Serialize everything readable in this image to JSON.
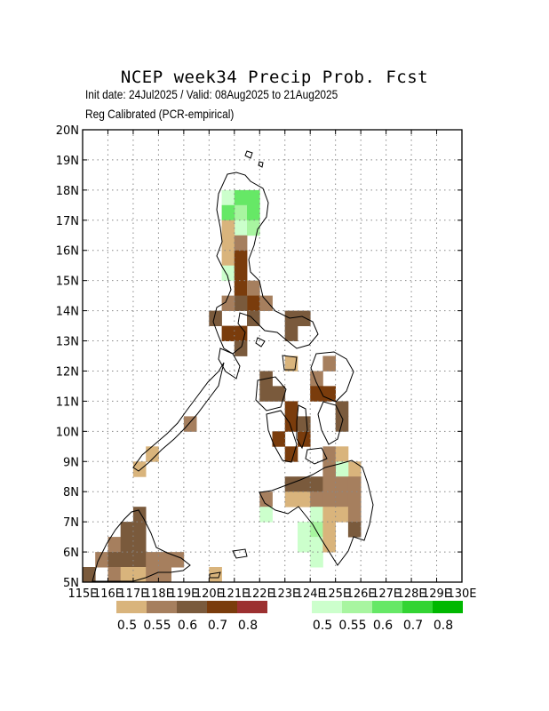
{
  "title": "NCEP week34 Precip Prob. Fcst",
  "subtitle1": "Init date: 24Jul2025 / Valid: 08Aug2025 to 21Aug2025",
  "subtitle2": "Reg Calibrated (PCR-empirical)",
  "axes": {
    "lon_labels": [
      "115E",
      "116E",
      "117E",
      "118E",
      "119E",
      "120E",
      "121E",
      "122E",
      "123E",
      "124E",
      "125E",
      "126E",
      "127E",
      "128E",
      "129E",
      "130E"
    ],
    "lat_labels": [
      "5N",
      "6N",
      "7N",
      "8N",
      "9N",
      "10N",
      "11N",
      "12N",
      "13N",
      "14N",
      "15N",
      "16N",
      "17N",
      "18N",
      "19N",
      "20N"
    ],
    "lon_range": [
      115,
      130
    ],
    "lat_range": [
      5,
      20
    ],
    "grid": "dotted"
  },
  "legend": {
    "dry": {
      "colors": [
        "#d9b47c",
        "#a67f5e",
        "#7a5a3c",
        "#7a3c0c",
        "#9c3030"
      ],
      "labels": [
        "0.5",
        "0.55",
        "0.6",
        "0.7",
        "0.8"
      ]
    },
    "wet": {
      "colors": [
        "#ccffcc",
        "#a8f5a0",
        "#66e866",
        "#33d433",
        "#00b800"
      ],
      "labels": [
        "0.5",
        "0.55",
        "0.6",
        "0.7",
        "0.8"
      ]
    }
  },
  "chart_data": {
    "type": "heatmap",
    "cell_size_deg": 0.5,
    "cells": [
      {
        "lon": 120.5,
        "lat": 17.5,
        "cat": "W1"
      },
      {
        "lon": 121.0,
        "lat": 17.5,
        "cat": "W3"
      },
      {
        "lon": 121.5,
        "lat": 17.5,
        "cat": "W3"
      },
      {
        "lon": 121.0,
        "lat": 17.0,
        "cat": "W2"
      },
      {
        "lon": 121.5,
        "lat": 17.0,
        "cat": "W3"
      },
      {
        "lon": 120.5,
        "lat": 17.0,
        "cat": "W3"
      },
      {
        "lon": 121.0,
        "lat": 16.5,
        "cat": "W1"
      },
      {
        "lon": 121.5,
        "lat": 16.5,
        "cat": "W2"
      },
      {
        "lon": 120.5,
        "lat": 16.5,
        "cat": "D1"
      },
      {
        "lon": 120.5,
        "lat": 16.0,
        "cat": "D1"
      },
      {
        "lon": 121.0,
        "lat": 16.0,
        "cat": "D2"
      },
      {
        "lon": 120.5,
        "lat": 15.5,
        "cat": "D1"
      },
      {
        "lon": 120.5,
        "lat": 15.0,
        "cat": "W1"
      },
      {
        "lon": 121.0,
        "lat": 15.5,
        "cat": "D4"
      },
      {
        "lon": 121.0,
        "lat": 15.0,
        "cat": "D4"
      },
      {
        "lon": 121.0,
        "lat": 14.5,
        "cat": "D4"
      },
      {
        "lon": 121.5,
        "lat": 14.5,
        "cat": "D2"
      },
      {
        "lon": 121.5,
        "lat": 14.0,
        "cat": "D4"
      },
      {
        "lon": 121.0,
        "lat": 14.0,
        "cat": "D3"
      },
      {
        "lon": 120.5,
        "lat": 14.0,
        "cat": "D2"
      },
      {
        "lon": 120.0,
        "lat": 13.5,
        "cat": "D3"
      },
      {
        "lon": 120.5,
        "lat": 13.0,
        "cat": "D4"
      },
      {
        "lon": 121.0,
        "lat": 13.0,
        "cat": "D4"
      },
      {
        "lon": 121.0,
        "lat": 12.5,
        "cat": "D3"
      },
      {
        "lon": 121.5,
        "lat": 13.5,
        "cat": "D3"
      },
      {
        "lon": 122.0,
        "lat": 14.0,
        "cat": "D2"
      },
      {
        "lon": 123.0,
        "lat": 13.5,
        "cat": "D3"
      },
      {
        "lon": 123.5,
        "lat": 13.5,
        "cat": "D3"
      },
      {
        "lon": 123.0,
        "lat": 13.0,
        "cat": "D3"
      },
      {
        "lon": 123.0,
        "lat": 12.0,
        "cat": "D1"
      },
      {
        "lon": 122.0,
        "lat": 11.5,
        "cat": "D3"
      },
      {
        "lon": 122.0,
        "lat": 11.0,
        "cat": "D3"
      },
      {
        "lon": 122.5,
        "lat": 11.0,
        "cat": "D3"
      },
      {
        "lon": 124.5,
        "lat": 12.0,
        "cat": "D2"
      },
      {
        "lon": 124.0,
        "lat": 11.5,
        "cat": "D2"
      },
      {
        "lon": 124.5,
        "lat": 11.0,
        "cat": "D4"
      },
      {
        "lon": 124.0,
        "lat": 11.0,
        "cat": "D4"
      },
      {
        "lon": 125.0,
        "lat": 10.5,
        "cat": "D3"
      },
      {
        "lon": 125.0,
        "lat": 10.0,
        "cat": "D3"
      },
      {
        "lon": 123.0,
        "lat": 10.5,
        "cat": "D4"
      },
      {
        "lon": 123.0,
        "lat": 10.0,
        "cat": "D4"
      },
      {
        "lon": 122.5,
        "lat": 9.5,
        "cat": "D4"
      },
      {
        "lon": 123.0,
        "lat": 9.0,
        "cat": "D4"
      },
      {
        "lon": 123.5,
        "lat": 9.5,
        "cat": "D4"
      },
      {
        "lon": 123.5,
        "lat": 10.0,
        "cat": "D3"
      },
      {
        "lon": 119.0,
        "lat": 10.0,
        "cat": "D2"
      },
      {
        "lon": 117.5,
        "lat": 9.0,
        "cat": "D1"
      },
      {
        "lon": 117.0,
        "lat": 8.5,
        "cat": "D1"
      },
      {
        "lon": 124.5,
        "lat": 9.0,
        "cat": "D2"
      },
      {
        "lon": 125.0,
        "lat": 9.0,
        "cat": "D1"
      },
      {
        "lon": 125.5,
        "lat": 8.5,
        "cat": "D1"
      },
      {
        "lon": 125.0,
        "lat": 8.5,
        "cat": "W1"
      },
      {
        "lon": 124.5,
        "lat": 8.5,
        "cat": "D2"
      },
      {
        "lon": 123.0,
        "lat": 8.0,
        "cat": "D3"
      },
      {
        "lon": 123.5,
        "lat": 8.0,
        "cat": "D3"
      },
      {
        "lon": 124.0,
        "lat": 8.0,
        "cat": "D3"
      },
      {
        "lon": 124.5,
        "lat": 8.0,
        "cat": "D2"
      },
      {
        "lon": 125.0,
        "lat": 8.0,
        "cat": "D2"
      },
      {
        "lon": 125.5,
        "lat": 8.0,
        "cat": "D2"
      },
      {
        "lon": 122.0,
        "lat": 7.5,
        "cat": "D2"
      },
      {
        "lon": 122.0,
        "lat": 7.0,
        "cat": "W1"
      },
      {
        "lon": 123.0,
        "lat": 7.5,
        "cat": "D1"
      },
      {
        "lon": 123.5,
        "lat": 7.5,
        "cat": "D1"
      },
      {
        "lon": 124.0,
        "lat": 7.5,
        "cat": "D2"
      },
      {
        "lon": 124.5,
        "lat": 7.5,
        "cat": "D2"
      },
      {
        "lon": 125.0,
        "lat": 7.5,
        "cat": "D2"
      },
      {
        "lon": 125.5,
        "lat": 7.5,
        "cat": "D2"
      },
      {
        "lon": 124.0,
        "lat": 7.0,
        "cat": "W1"
      },
      {
        "lon": 124.5,
        "lat": 7.0,
        "cat": "D1"
      },
      {
        "lon": 125.0,
        "lat": 7.0,
        "cat": "D1"
      },
      {
        "lon": 125.5,
        "lat": 7.0,
        "cat": "D2"
      },
      {
        "lon": 125.5,
        "lat": 6.5,
        "cat": "D3"
      },
      {
        "lon": 123.5,
        "lat": 6.5,
        "cat": "W1"
      },
      {
        "lon": 124.0,
        "lat": 6.5,
        "cat": "W2"
      },
      {
        "lon": 124.0,
        "lat": 6.0,
        "cat": "W1"
      },
      {
        "lon": 124.5,
        "lat": 6.0,
        "cat": "D1"
      },
      {
        "lon": 124.5,
        "lat": 6.5,
        "cat": "D1"
      },
      {
        "lon": 123.5,
        "lat": 6.0,
        "cat": "W1"
      },
      {
        "lon": 124.0,
        "lat": 5.5,
        "cat": "W1"
      },
      {
        "lon": 116.5,
        "lat": 6.5,
        "cat": "D3"
      },
      {
        "lon": 116.0,
        "lat": 6.0,
        "cat": "D2"
      },
      {
        "lon": 116.5,
        "lat": 6.0,
        "cat": "D3"
      },
      {
        "lon": 117.0,
        "lat": 6.0,
        "cat": "D3"
      },
      {
        "lon": 117.0,
        "lat": 6.5,
        "cat": "D3"
      },
      {
        "lon": 117.0,
        "lat": 7.0,
        "cat": "D3"
      },
      {
        "lon": 115.5,
        "lat": 5.5,
        "cat": "D2"
      },
      {
        "lon": 116.0,
        "lat": 5.5,
        "cat": "D3"
      },
      {
        "lon": 116.5,
        "lat": 5.5,
        "cat": "D3"
      },
      {
        "lon": 117.0,
        "lat": 5.5,
        "cat": "D3"
      },
      {
        "lon": 117.5,
        "lat": 5.5,
        "cat": "D2"
      },
      {
        "lon": 118.0,
        "lat": 5.5,
        "cat": "D2"
      },
      {
        "lon": 118.5,
        "lat": 5.5,
        "cat": "D2"
      },
      {
        "lon": 115.0,
        "lat": 5.0,
        "cat": "D3"
      },
      {
        "lon": 116.0,
        "lat": 5.0,
        "cat": "D2"
      },
      {
        "lon": 116.5,
        "lat": 5.0,
        "cat": "D1"
      },
      {
        "lon": 117.0,
        "lat": 5.0,
        "cat": "D1"
      },
      {
        "lon": 117.5,
        "lat": 5.0,
        "cat": "D2"
      },
      {
        "lon": 118.0,
        "lat": 5.0,
        "cat": "D2"
      },
      {
        "lon": 120.0,
        "lat": 5.0,
        "cat": "D1"
      }
    ]
  }
}
